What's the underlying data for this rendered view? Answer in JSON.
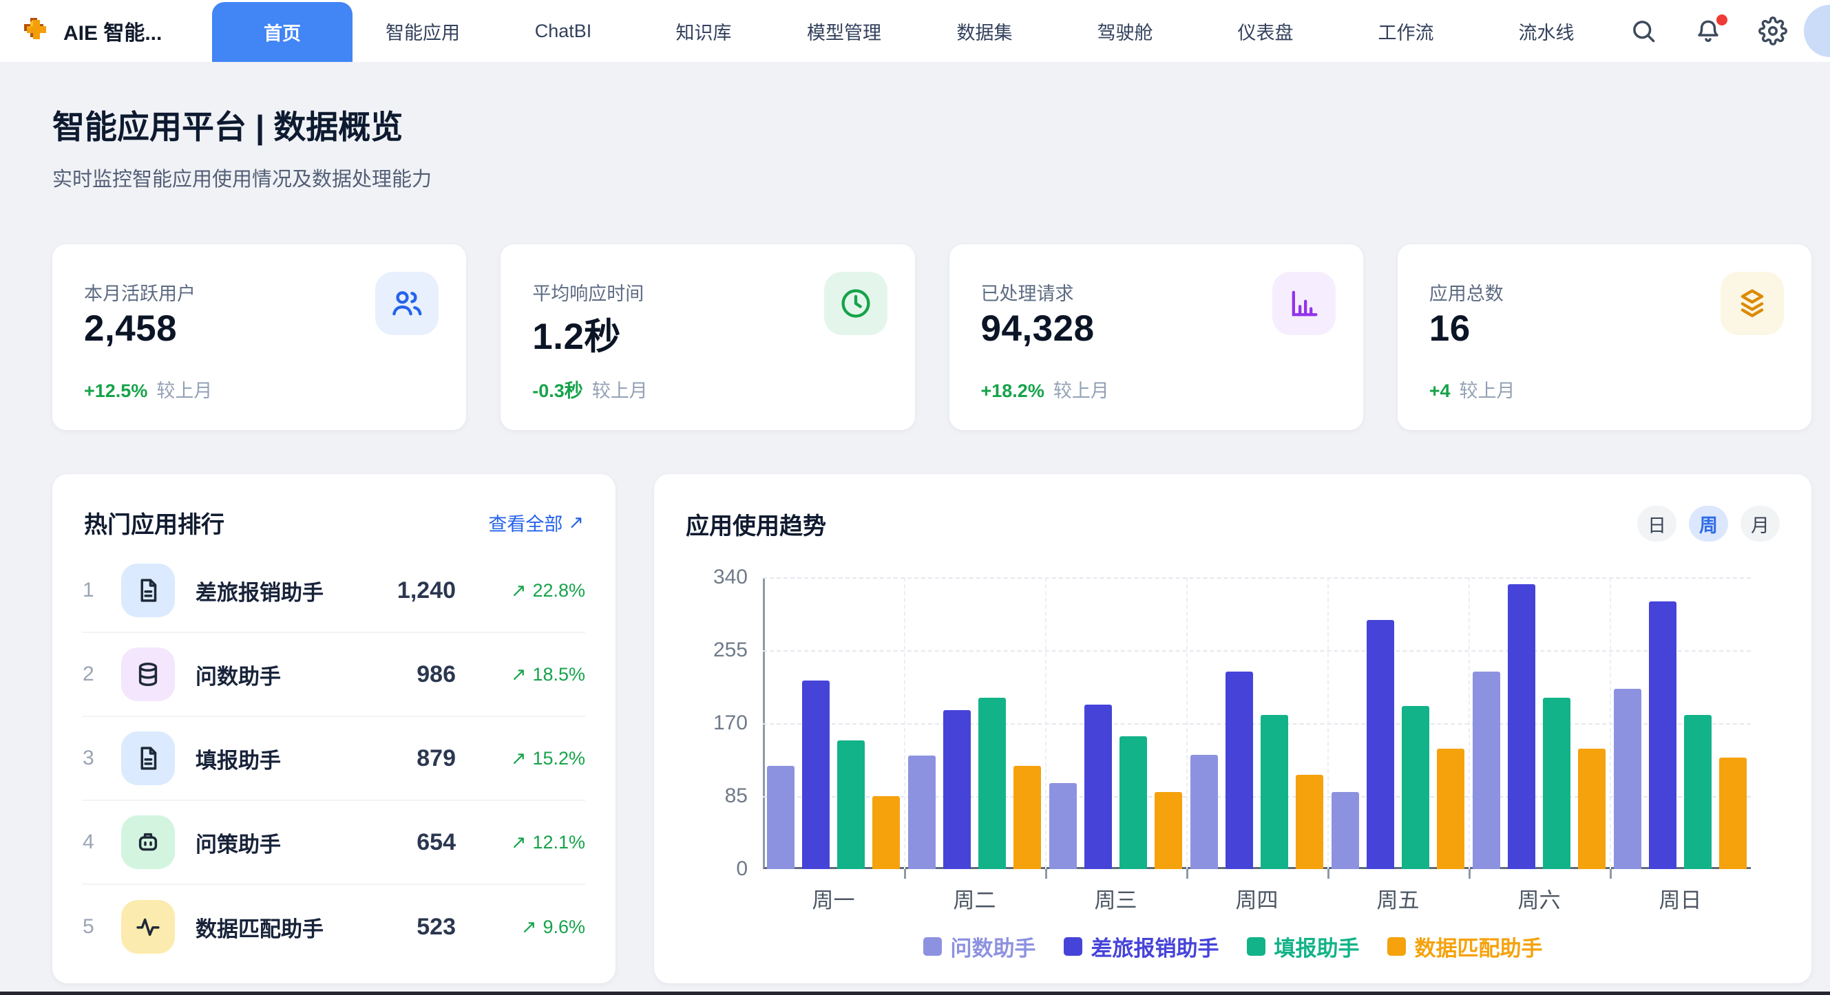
{
  "header": {
    "brand": "AIE 智能...",
    "tabs": [
      {
        "label": "首页",
        "active": true
      },
      {
        "label": "智能应用",
        "active": false
      },
      {
        "label": "ChatBI",
        "active": false
      },
      {
        "label": "知识库",
        "active": false
      },
      {
        "label": "模型管理",
        "active": false
      },
      {
        "label": "数据集",
        "active": false
      },
      {
        "label": "驾驶舱",
        "active": false
      },
      {
        "label": "仪表盘",
        "active": false
      },
      {
        "label": "工作流",
        "active": false
      },
      {
        "label": "流水线",
        "active": false
      }
    ],
    "action_icons": [
      "search-icon",
      "bell-icon",
      "gear-icon"
    ],
    "bell_has_notification": true,
    "accent_color": "#4285f4"
  },
  "page": {
    "title": "智能应用平台 | 数据概览",
    "subtitle": "实时监控智能应用使用情况及数据处理能力"
  },
  "icons": {
    "trend_up": "↗"
  },
  "stats": [
    {
      "label": "本月活跃用户",
      "value": "2,458",
      "delta": "+12.5%",
      "delta_note": "较上月",
      "icon": "users-icon",
      "icon_color": "#2563eb",
      "icon_bg": "#e8f0fe"
    },
    {
      "label": "平均响应时间",
      "value": "1.2秒",
      "delta": "-0.3秒",
      "delta_note": "较上月",
      "icon": "clock-icon",
      "icon_color": "#16a34a",
      "icon_bg": "#e4f6ec"
    },
    {
      "label": "已处理请求",
      "value": "94,328",
      "delta": "+18.2%",
      "delta_note": "较上月",
      "icon": "bar-chart-icon",
      "icon_color": "#9333ea",
      "icon_bg": "#f6eefe"
    },
    {
      "label": "应用总数",
      "value": "16",
      "delta": "+4",
      "delta_note": "较上月",
      "icon": "layers-icon",
      "icon_color": "#dc8a06",
      "icon_bg": "#fcf6e4"
    }
  ],
  "ranking": {
    "title": "热门应用排行",
    "view_all": "查看全部",
    "rows": [
      {
        "rank": "1",
        "name": "差旅报销助手",
        "value": "1,240",
        "percent": "22.8%",
        "icon": "document-icon",
        "icon_bg": "#dbeafe"
      },
      {
        "rank": "2",
        "name": "问数助手",
        "value": "986",
        "percent": "18.5%",
        "icon": "database-icon",
        "icon_bg": "#f3e6fd"
      },
      {
        "rank": "3",
        "name": "填报助手",
        "value": "879",
        "percent": "15.2%",
        "icon": "document-icon",
        "icon_bg": "#dbeafe"
      },
      {
        "rank": "4",
        "name": "问策助手",
        "value": "654",
        "percent": "12.1%",
        "icon": "robot-icon",
        "icon_bg": "#d3f5e0"
      },
      {
        "rank": "5",
        "name": "数据匹配助手",
        "value": "523",
        "percent": "9.6%",
        "icon": "activity-icon",
        "icon_bg": "#fcebae"
      }
    ]
  },
  "trend": {
    "title": "应用使用趋势",
    "toggles": [
      {
        "label": "日",
        "active": false
      },
      {
        "label": "周",
        "active": true
      },
      {
        "label": "月",
        "active": false
      }
    ]
  },
  "chart_data": {
    "type": "bar",
    "categories": [
      "周一",
      "周二",
      "周三",
      "周四",
      "周五",
      "周六",
      "周日"
    ],
    "series": [
      {
        "name": "问数助手",
        "color": "#8d92e0",
        "values": [
          120,
          132,
          100,
          133,
          90,
          230,
          210
        ]
      },
      {
        "name": "差旅报销助手",
        "color": "#4643d9",
        "values": [
          220,
          185,
          192,
          230,
          290,
          332,
          312
        ]
      },
      {
        "name": "填报助手",
        "color": "#12b388",
        "values": [
          150,
          200,
          155,
          180,
          190,
          200,
          180
        ]
      },
      {
        "name": "数据匹配助手",
        "color": "#f5a20d",
        "values": [
          85,
          120,
          90,
          110,
          140,
          140,
          130
        ]
      }
    ],
    "title": "应用使用趋势",
    "xlabel": "",
    "ylabel": "",
    "ylim": [
      0,
      340
    ],
    "yticks": [
      0,
      85,
      170,
      255,
      340
    ],
    "grid": "dashed",
    "legend_position": "bottom"
  }
}
